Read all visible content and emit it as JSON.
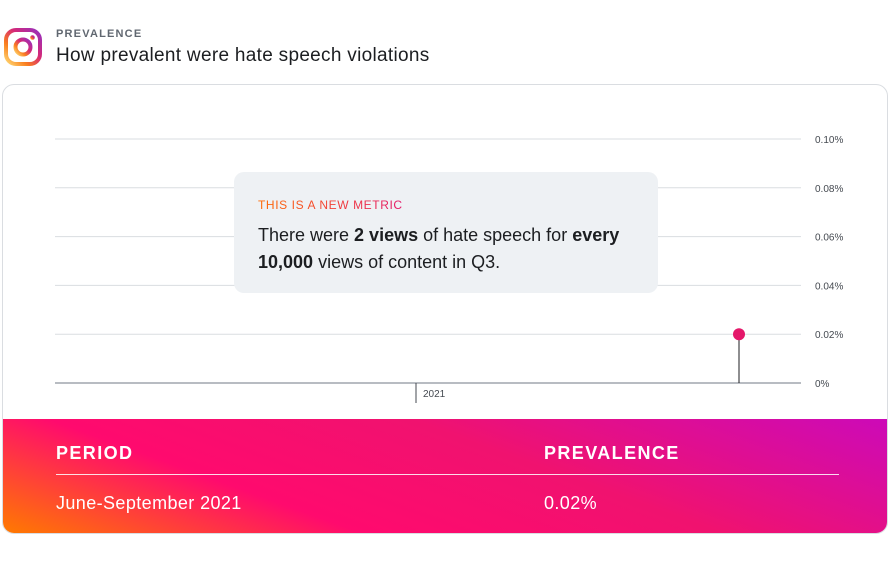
{
  "header": {
    "eyebrow": "PREVALENCE",
    "title": "How prevalent were hate speech violations",
    "logo_icon": "instagram-icon"
  },
  "chart_data": {
    "type": "scatter",
    "x_label_ticks": [
      "2021"
    ],
    "y_ticks": [
      "0.10%",
      "0.08%",
      "0.06%",
      "0.04%",
      "0.02%",
      "0%"
    ],
    "ylim": [
      0,
      0.1
    ],
    "grid": true,
    "points": [
      {
        "period": "June-September 2021",
        "y": 0.02
      }
    ],
    "point_color": "#e4186a"
  },
  "callout": {
    "eyebrow": "THIS IS A NEW METRIC",
    "text_1": "There were ",
    "bold_1": "2 views",
    "text_2": " of hate speech for ",
    "bold_2": "every 10,000",
    "text_3": " views of content in Q3."
  },
  "table": {
    "col_period": "PERIOD",
    "col_prevalence": "PREVALENCE",
    "row_period": "June-September 2021",
    "row_prevalence": "0.02%"
  }
}
